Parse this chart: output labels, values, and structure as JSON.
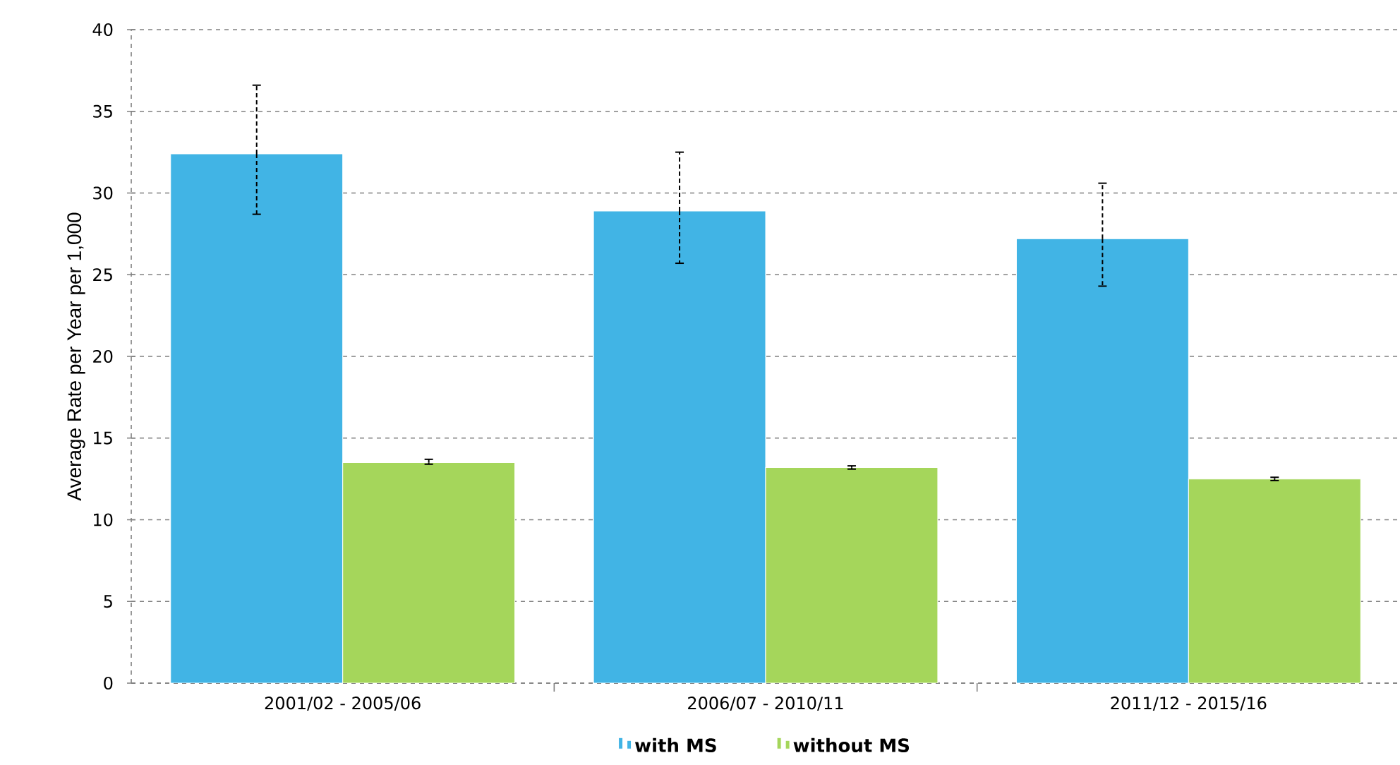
{
  "chart_data": {
    "type": "bar",
    "ylabel": "Average Rate per  Year per 1,000",
    "categories": [
      "2001/02 - 2005/06",
      "2006/07 - 2010/11",
      "2011/12 - 2015/16"
    ],
    "series": [
      {
        "name": "with MS",
        "color": "#41b4e5",
        "values": [
          32.4,
          28.9,
          27.2
        ],
        "errors": [
          [
            28.7,
            36.6
          ],
          [
            25.7,
            32.5
          ],
          [
            24.3,
            30.6
          ]
        ]
      },
      {
        "name": "without MS",
        "color": "#a5d65b",
        "values": [
          13.5,
          13.2,
          12.5
        ],
        "errors": [
          [
            13.4,
            13.7
          ],
          [
            13.1,
            13.3
          ],
          [
            12.4,
            12.6
          ]
        ]
      }
    ],
    "ylim": [
      0,
      40
    ],
    "yticks": [
      0,
      5,
      10,
      15,
      20,
      25,
      30,
      35,
      40
    ],
    "grid": "y",
    "legend": "bottom"
  }
}
